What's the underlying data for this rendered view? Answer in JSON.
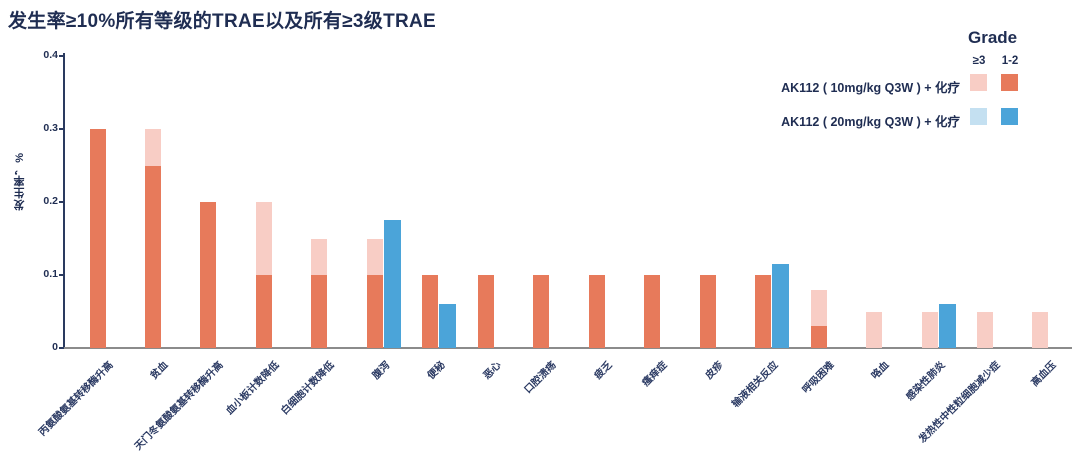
{
  "title": "发生率≥10%所有等级的TRAE以及所有≥3级TRAE",
  "colors": {
    "salmon": "#E77A5B",
    "pink": "#F8CDC5",
    "blue": "#4BA4D9",
    "lightblue": "#C4E0F1",
    "navy": "#1F2D52",
    "axis_gray": "#8B8B8B"
  },
  "legend": {
    "title": "Grade",
    "col_grade3": "≥3",
    "col_grade12": "1-2",
    "rows": [
      {
        "label": "AK112 ( 10mg/kg Q3W ) + 化疗"
      },
      {
        "label": "AK112 ( 20mg/kg Q3W ) + 化疗"
      }
    ]
  },
  "chart_data": {
    "type": "bar",
    "stacked": true,
    "title": "发生率≥10%所有等级的TRAE以及所有≥3级TRAE",
    "xlabel": "",
    "ylabel": "发生率，%",
    "ylim": [
      0,
      0.4
    ],
    "yticks": [
      0,
      0.1,
      0.2,
      0.3,
      0.4
    ],
    "grid": false,
    "legend_position": "top-right",
    "categories": [
      "丙氨酸氨基转移酶升高",
      "贫血",
      "天门冬氨酸氨基转移酶升高",
      "血小板计数降低",
      "白细胞计数降低",
      "腹泻",
      "便秘",
      "恶心",
      "口腔溃疡",
      "疲乏",
      "瘙痒症",
      "皮疹",
      "输液相关反应",
      "呼吸困难",
      "咯血",
      "感染性肺炎",
      "发热性中性粒细胞减少症",
      "高血压"
    ],
    "series": [
      {
        "name": "AK112 ( 10mg/kg Q3W ) + 化疗",
        "color_grade12": "#E77A5B",
        "color_grade3plus": "#F8CDC5",
        "grade12": [
          0.3,
          0.25,
          0.2,
          0.1,
          0.1,
          0.1,
          0.1,
          0.1,
          0.1,
          0.1,
          0.1,
          0.1,
          0.1,
          0.03,
          0,
          0,
          0,
          0
        ],
        "grade3plus": [
          0,
          0.05,
          0,
          0.1,
          0.05,
          0.05,
          0,
          0,
          0,
          0,
          0,
          0,
          0,
          0.05,
          0.05,
          0.05,
          0.05,
          0.05
        ]
      },
      {
        "name": "AK112 ( 20mg/kg Q3W ) + 化疗",
        "color_grade12": "#4BA4D9",
        "color_grade3plus": "#C4E0F1",
        "grade12": [
          0,
          0,
          0,
          0,
          0,
          0.175,
          0.06,
          0,
          0,
          0,
          0,
          0,
          0.115,
          0,
          0,
          0.06,
          0,
          0
        ],
        "grade3plus": [
          0,
          0,
          0,
          0,
          0,
          0,
          0,
          0,
          0,
          0,
          0,
          0,
          0,
          0,
          0,
          0,
          0,
          0
        ]
      }
    ]
  }
}
